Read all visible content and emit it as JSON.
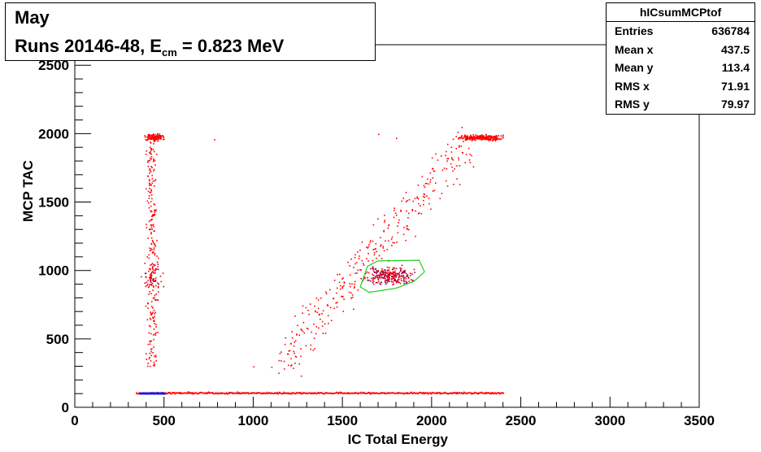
{
  "title": {
    "line1": "May",
    "line2_prefix": "Runs 20146-48, E",
    "line2_sub": "cm",
    "line2_suffix": " = 0.823 MeV"
  },
  "stats": {
    "name": "hICsumMCPtof",
    "rows": [
      {
        "label": "Entries",
        "value": "636784"
      },
      {
        "label": "Mean x",
        "value": "437.5"
      },
      {
        "label": "Mean y",
        "value": "113.4"
      },
      {
        "label": "RMS x",
        "value": "71.91"
      },
      {
        "label": "RMS y",
        "value": "79.97"
      }
    ]
  },
  "chart_data": {
    "type": "scatter",
    "xlabel": "IC Total Energy",
    "ylabel": "MCP TAC",
    "xlim": [
      0,
      3500
    ],
    "ylim": [
      0,
      2650
    ],
    "xticks": [
      0,
      500,
      1000,
      1500,
      2000,
      2500,
      3000,
      3500
    ],
    "yticks": [
      500,
      1000,
      1500,
      2000,
      2500
    ],
    "ytick_zero": 0,
    "colors": {
      "points": "#ff0000",
      "dense": "#8b0055",
      "dense_core": "#1a1adc",
      "cut": "#22cc22"
    },
    "clusters": [
      {
        "name": "vertical-band",
        "x_center": 430,
        "x_spread": 25,
        "y_range": [
          300,
          2000
        ]
      },
      {
        "name": "upper-blob-left",
        "x_center": 440,
        "y_center": 1975,
        "x_spread": 50,
        "y_spread": 20
      },
      {
        "name": "upper-blob-right",
        "x_center": 2270,
        "y_center": 1975,
        "x_spread": 130,
        "y_spread": 15
      },
      {
        "name": "diagonal-band",
        "x_range": [
          1150,
          2200
        ],
        "y_range": [
          330,
          1950
        ]
      },
      {
        "name": "central-cluster",
        "x_center": 1760,
        "y_center": 960,
        "x_spread": 110,
        "y_spread": 55
      },
      {
        "name": "baseline",
        "x_range": [
          340,
          2400
        ],
        "y_value": 108
      },
      {
        "name": "baseline-core",
        "x_range": [
          360,
          500
        ],
        "y_value": 108
      }
    ],
    "cut_polygon": [
      [
        1600,
        880
      ],
      [
        1640,
        1030
      ],
      [
        1700,
        1070
      ],
      [
        1930,
        1075
      ],
      [
        1960,
        990
      ],
      [
        1900,
        920
      ],
      [
        1800,
        870
      ],
      [
        1650,
        840
      ]
    ]
  }
}
